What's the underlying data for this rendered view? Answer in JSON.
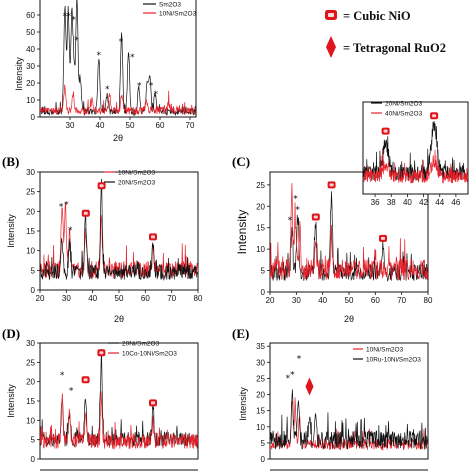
{
  "legend_key": {
    "items": [
      {
        "label": "= Cubic NiO",
        "marker": "cube",
        "color": "#e0141b"
      },
      {
        "label": "= Tetragonal RuO2",
        "marker": "diamond",
        "color": "#e0141b"
      }
    ]
  },
  "colors": {
    "black_series": "#111111",
    "red_series": "#e8202a",
    "marker": "#e0141b"
  },
  "chart_data": [
    {
      "id": "A",
      "type": "line",
      "letter": "",
      "xlabel": "2θ",
      "ylabel": "Intensity",
      "xlim": [
        20,
        72
      ],
      "ylim": [
        0,
        70
      ],
      "xticks": [
        30,
        40,
        50,
        60,
        70
      ],
      "yticks": [
        0,
        10,
        20,
        30,
        40,
        50,
        60
      ],
      "series": [
        {
          "name": "Sm2O3",
          "color": "#111111",
          "baseline": 2.5,
          "noise": 1.8,
          "peaks": [
            [
              28.3,
              62
            ],
            [
              29.4,
              60
            ],
            [
              30.6,
              56
            ],
            [
              31.3,
              24
            ],
            [
              32.3,
              66
            ],
            [
              33.4,
              20
            ],
            [
              39.6,
              32
            ],
            [
              42.4,
              10
            ],
            [
              47.2,
              46
            ],
            [
              49.5,
              36
            ],
            [
              52.9,
              14
            ],
            [
              55.7,
              18
            ],
            [
              56.6,
              22
            ],
            [
              58.4,
              10
            ]
          ]
        },
        {
          "name": "10Ni/Sm2O3",
          "color": "#e8202a",
          "baseline": 3.0,
          "noise": 2.0,
          "peaks": [
            [
              28.3,
              14
            ],
            [
              31.0,
              10
            ],
            [
              37.3,
              6
            ],
            [
              43.2,
              9
            ],
            [
              47.2,
              8
            ],
            [
              55.5,
              6
            ],
            [
              62.9,
              5
            ]
          ]
        }
      ],
      "stars": [
        [
          28.3,
          60
        ],
        [
          29.6,
          60
        ],
        [
          31.2,
          58
        ],
        [
          32.2,
          46
        ],
        [
          39.6,
          37
        ],
        [
          47.0,
          45
        ],
        [
          50.8,
          36
        ],
        [
          42.4,
          17
        ],
        [
          53.1,
          19
        ],
        [
          57.0,
          19
        ],
        [
          58.6,
          14
        ]
      ],
      "markers": [],
      "legend_pos": "top-right"
    },
    {
      "id": "B",
      "type": "line",
      "letter": "(B)",
      "xlabel": "2θ",
      "ylabel": "Intensity",
      "xlim": [
        20,
        80
      ],
      "ylim": [
        0,
        30
      ],
      "xticks": [
        20,
        30,
        40,
        50,
        60,
        70,
        80
      ],
      "yticks": [
        0,
        5,
        10,
        15,
        20,
        25,
        30
      ],
      "series": [
        {
          "name": "10Ni/Sm2O3",
          "color": "#e8202a",
          "baseline": 4.5,
          "noise": 2.0,
          "peaks": [
            [
              28.4,
              18
            ],
            [
              29.6,
              16
            ],
            [
              31.2,
              10
            ],
            [
              37.3,
              10
            ],
            [
              43.3,
              13
            ],
            [
              62.9,
              5
            ]
          ]
        },
        {
          "name": "20Ni/Sm2O3",
          "color": "#111111",
          "baseline": 4.0,
          "noise": 1.8,
          "peaks": [
            [
              28.4,
              9
            ],
            [
              31.2,
              7
            ],
            [
              37.3,
              14
            ],
            [
              43.3,
              22
            ],
            [
              62.9,
              8
            ]
          ]
        }
      ],
      "stars": [
        [
          28.0,
          21.5
        ],
        [
          30.0,
          22.0
        ],
        [
          31.5,
          15.5
        ]
      ],
      "markers": [
        [
          37.4,
          19.5
        ],
        [
          43.4,
          26.5
        ],
        [
          62.9,
          13.5
        ]
      ],
      "legend_pos": "top-center"
    },
    {
      "id": "C",
      "type": "line",
      "letter": "(C)",
      "xlabel": "2θ",
      "ylabel": "Intensity",
      "xlim": [
        20,
        80
      ],
      "ylim": [
        0,
        28
      ],
      "xticks": [
        20,
        30,
        40,
        50,
        60,
        70,
        80
      ],
      "yticks": [
        0,
        5,
        10,
        15,
        20,
        25
      ],
      "series": [
        {
          "name": "20Ni/Sm2O3",
          "color": "#111111",
          "baseline": 4.0,
          "noise": 1.8,
          "peaks": [
            [
              28.3,
              10
            ],
            [
              30.5,
              14
            ],
            [
              37.3,
              12
            ],
            [
              43.3,
              18
            ],
            [
              62.9,
              7
            ]
          ]
        },
        {
          "name": "40Ni/Sm2O3",
          "color": "#e8202a",
          "baseline": 4.5,
          "noise": 2.2,
          "peaks": [
            [
              28.3,
              16
            ],
            [
              29.6,
              12
            ],
            [
              31.3,
              9
            ],
            [
              37.3,
              6
            ],
            [
              43.3,
              7
            ]
          ]
        }
      ],
      "stars": [
        [
          27.6,
          17.0
        ],
        [
          29.7,
          22.0
        ],
        [
          30.5,
          19.5
        ]
      ],
      "markers": [
        [
          37.4,
          17.5
        ],
        [
          43.4,
          25.0
        ],
        [
          62.9,
          12.5
        ]
      ],
      "legend_pos": "inset"
    },
    {
      "id": "C-inset",
      "type": "line",
      "letter": "",
      "xlabel": "",
      "ylabel": "",
      "xlim": [
        34.5,
        47.5
      ],
      "ylim": [
        0,
        30
      ],
      "xticks": [
        36,
        38,
        40,
        42,
        44,
        46
      ],
      "yticks": [],
      "series": [
        {
          "name": "20Ni/Sm2O3",
          "color": "#111111",
          "baseline": 6.0,
          "noise": 2.2,
          "peaks": [
            [
              37.3,
              10
            ],
            [
              43.3,
              16
            ]
          ]
        },
        {
          "name": "40Ni/Sm2O3",
          "color": "#e8202a",
          "baseline": 5.0,
          "noise": 2.0,
          "peaks": [
            [
              37.3,
              4
            ],
            [
              43.3,
              5
            ]
          ]
        }
      ],
      "stars": [],
      "markers": [
        [
          37.3,
          20.5
        ],
        [
          43.3,
          25.5
        ]
      ],
      "legend_pos": "top-right"
    },
    {
      "id": "D",
      "type": "line",
      "letter": "(D)",
      "xlabel": "",
      "ylabel": "Intensity",
      "xlim": [
        20,
        80
      ],
      "ylim": [
        0,
        30
      ],
      "xticks": [],
      "yticks": [
        0,
        5,
        10,
        15,
        20,
        25,
        30
      ],
      "series": [
        {
          "name": "20Ni/Sm2O3",
          "color": "#111111",
          "baseline": 4.5,
          "noise": 1.8,
          "peaks": [
            [
              28.4,
              10
            ],
            [
              31.2,
              7
            ],
            [
              37.3,
              12
            ],
            [
              43.3,
              22
            ],
            [
              62.9,
              9
            ]
          ]
        },
        {
          "name": "10Co-10Ni/Sm2O3",
          "color": "#e8202a",
          "baseline": 4.0,
          "noise": 1.8,
          "peaks": [
            [
              28.4,
              12
            ],
            [
              31.2,
              8
            ],
            [
              37.3,
              8
            ],
            [
              43.3,
              12
            ],
            [
              62.9,
              5
            ]
          ]
        }
      ],
      "stars": [
        [
          28.4,
          22.0
        ],
        [
          31.8,
          18.0
        ]
      ],
      "markers": [
        [
          37.3,
          20.5
        ],
        [
          43.3,
          27.5
        ],
        [
          62.9,
          14.5
        ]
      ],
      "legend_pos": "top-right"
    },
    {
      "id": "E",
      "type": "line",
      "letter": "(E)",
      "xlabel": "",
      "ylabel": "Intensity",
      "xlim": [
        20,
        80
      ],
      "ylim": [
        0,
        36
      ],
      "xticks": [],
      "yticks": [
        0,
        5,
        10,
        15,
        20,
        25,
        30,
        35
      ],
      "series": [
        {
          "name": "10Ni/Sm2O3",
          "color": "#e8202a",
          "baseline": 4.0,
          "noise": 1.6,
          "peaks": [
            [
              28.4,
              14
            ],
            [
              29.6,
              10
            ],
            [
              31.2,
              8
            ]
          ]
        },
        {
          "name": "10Ru-10Ni/Sm2O3",
          "color": "#111111",
          "baseline": 5.0,
          "noise": 2.6,
          "peaks": [
            [
              28.4,
              14
            ],
            [
              30.8,
              12
            ],
            [
              35.0,
              8
            ],
            [
              37.3,
              6
            ]
          ]
        }
      ],
      "stars": [
        [
          26.8,
          25.5
        ],
        [
          28.5,
          26.5
        ],
        [
          31.0,
          31.5
        ]
      ],
      "diamonds": [
        [
          35.0,
          22.5
        ]
      ],
      "markers": [],
      "legend_pos": "top-right"
    }
  ]
}
